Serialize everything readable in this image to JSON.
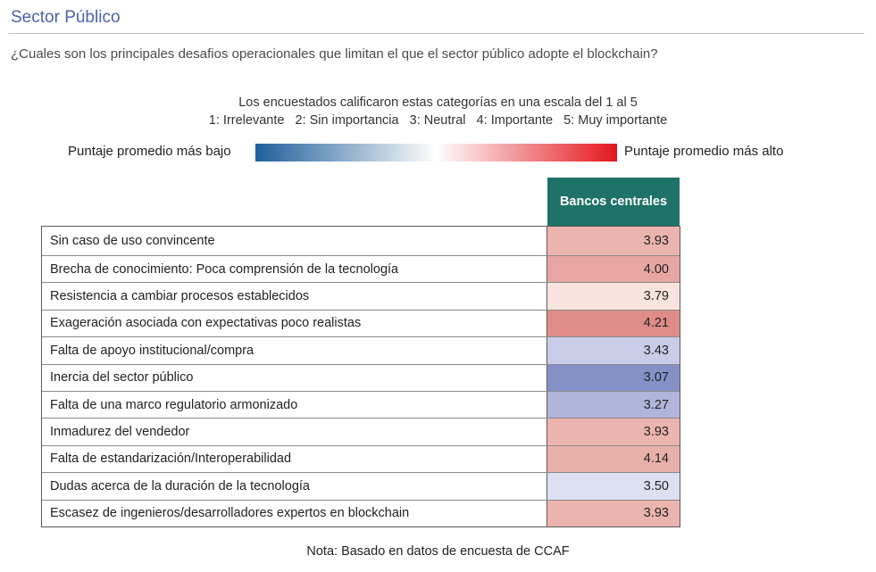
{
  "header": {
    "title": "Sector Público"
  },
  "question": "¿Cuales son los principales desafios operacionales que limitan el que el sector público adopte el blockchain?",
  "scale": {
    "line1": "Los encuestados calificaron estas categorías en una escala del 1 al 5",
    "line2": "1: Irrelevante   2: Sin importancia   3: Neutral   4: Importante   5: Muy importante"
  },
  "legend": {
    "low_label": "Puntaje promedio más bajo",
    "high_label": "Puntaje promedio más alto",
    "low_color": "#1f5f9a",
    "mid_color": "#ffffff",
    "high_color": "#e3161d"
  },
  "colors": {
    "header_bg": "#1f7268",
    "title": "#4d62a8"
  },
  "note": "Nota: Basado en datos de encuesta de CCAF",
  "chart_data": {
    "type": "table",
    "column_header": "Bancos centrales",
    "scale_min": 1,
    "scale_max": 5,
    "rows": [
      {
        "label": "Sin caso de uso convincente",
        "value": "3.93",
        "color": "#ebb4ae"
      },
      {
        "label": "Brecha de conocimiento: Poca comprensión de la tecnología",
        "value": "4.00",
        "color": "#e7a6a1"
      },
      {
        "label": "Resistencia a cambiar procesos establecidos",
        "value": "3.79",
        "color": "#f8e3df"
      },
      {
        "label": "Exageración asociada con expectativas poco realistas",
        "value": "4.21",
        "color": "#e08c86"
      },
      {
        "label": "Falta de apoyo institucional/compra",
        "value": "3.43",
        "color": "#c9cce7"
      },
      {
        "label": "Inercia del sector público",
        "value": "3.07",
        "color": "#8590c7"
      },
      {
        "label": "Falta de una marco regulatorio armonizado",
        "value": "3.27",
        "color": "#b0b5da"
      },
      {
        "label": "Inmadurez del vendedor",
        "value": "3.93",
        "color": "#ebb4ae"
      },
      {
        "label": "Falta de estandarización/Interoperabilidad",
        "value": "4.14",
        "color": "#e9b0aa"
      },
      {
        "label": "Dudas acerca de la duración de la tecnología",
        "value": "3.50",
        "color": "#dde0f0"
      },
      {
        "label": "Escasez de ingenieros/desarrolladores expertos en blockchain",
        "value": "3.93",
        "color": "#ebb4ae"
      }
    ]
  }
}
